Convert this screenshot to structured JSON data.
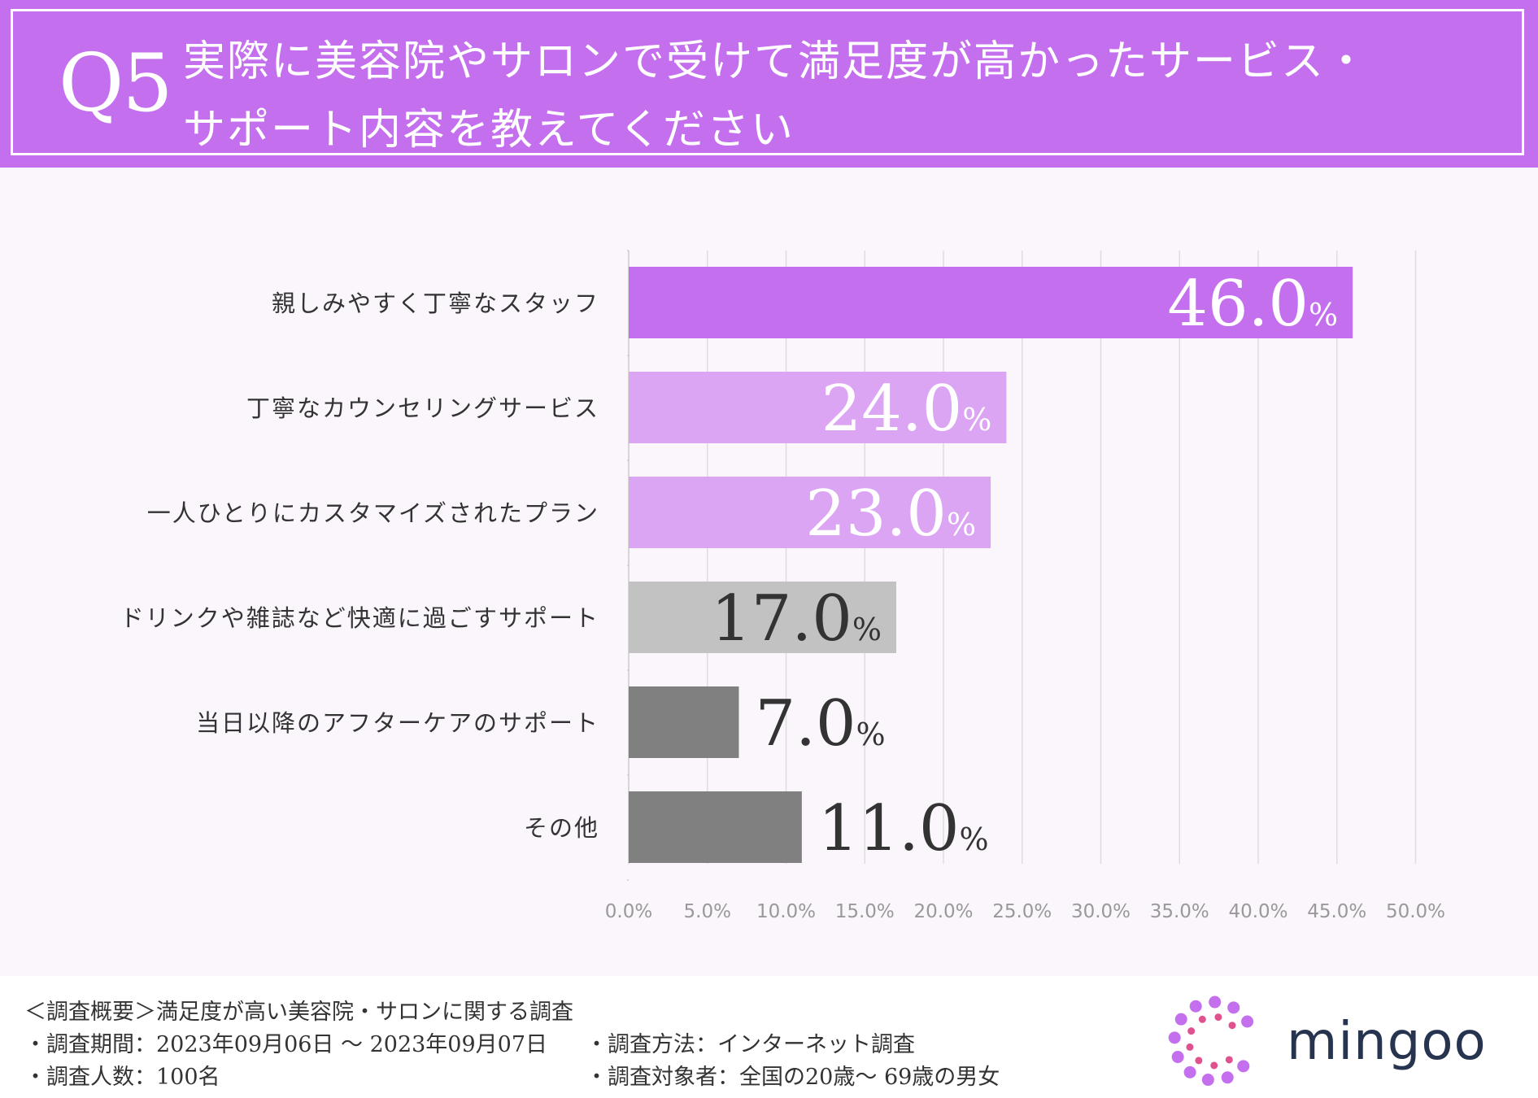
{
  "header": {
    "q_number": "Q5",
    "title_line1": "実際に美容院やサロンで受けて満足度が高かったサービス・",
    "title_line2": "サポート内容を教えてください"
  },
  "chart_data": {
    "type": "bar",
    "orientation": "horizontal",
    "categories": [
      "親しみやすく丁寧なスタッフ",
      "丁寧なカウンセリングサービス",
      "一人ひとりにカスタマイズされたプラン",
      "ドリンクや雑誌など快適に過ごすサポート",
      "当日以降のアフターケアのサポート",
      "その他"
    ],
    "values": [
      46.0,
      24.0,
      23.0,
      17.0,
      7.0,
      11.0
    ],
    "value_labels": [
      "46.0",
      "24.0",
      "23.0",
      "17.0",
      "7.0",
      "11.0"
    ],
    "unit": "%",
    "bar_colors": [
      "#c470ee",
      "#dca5f3",
      "#dca5f3",
      "#c2c2c2",
      "#808080",
      "#808080"
    ],
    "label_colors": [
      "#ffffff",
      "#ffffff",
      "#ffffff",
      "#333333",
      "#333333",
      "#333333"
    ],
    "label_inside": [
      true,
      true,
      true,
      true,
      false,
      false
    ],
    "xlim": [
      0,
      50
    ],
    "xticks": [
      0,
      5,
      10,
      15,
      20,
      25,
      30,
      35,
      40,
      45,
      50
    ],
    "xtick_labels": [
      "0.0%",
      "5.0%",
      "10.0%",
      "15.0%",
      "20.0%",
      "25.0%",
      "30.0%",
      "35.0%",
      "40.0%",
      "45.0%",
      "50.0%"
    ],
    "grid": true
  },
  "footer": {
    "overview": "＜調査概要＞満足度が高い美容院・サロンに関する調査",
    "period": "・調査期間：2023年09月06日 〜 2023年09月07日",
    "method": "・調査方法：インターネット調査",
    "count": "・調査人数：100名",
    "target": "・調査対象者：全国の20歳〜 69歳の男女"
  },
  "logo": {
    "text": "mingoo",
    "colors": [
      "#c470ee",
      "#e0518f"
    ]
  }
}
